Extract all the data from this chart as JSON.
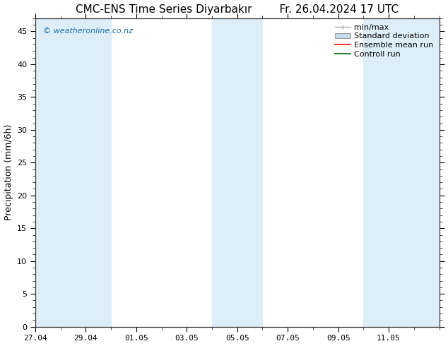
{
  "title": "CMC-ENS Time Series Diyarbakır        Fr. 26.04.2024 17 UTC",
  "ylabel": "Precipitation (mm/6h)",
  "ylim": [
    0,
    47
  ],
  "yticks": [
    0,
    5,
    10,
    15,
    20,
    25,
    30,
    35,
    40,
    45
  ],
  "xtick_labels": [
    "27.04",
    "29.04",
    "01.05",
    "03.05",
    "05.05",
    "07.05",
    "09.05",
    "11.05"
  ],
  "shade_color": "#ddeef8",
  "bg_color": "#ffffff",
  "watermark": "© weatheronline.co.nz",
  "watermark_color": "#1a6fa8",
  "legend_labels": [
    "min/max",
    "Standard deviation",
    "Ensemble mean run",
    "Controll run"
  ],
  "minmax_color": "#aaaaaa",
  "std_color": "#c8dcee",
  "ens_color": "#ff0000",
  "ctrl_color": "#006600",
  "title_fontsize": 11,
  "tick_fontsize": 8,
  "ylabel_fontsize": 9,
  "watermark_fontsize": 8,
  "legend_fontsize": 8
}
